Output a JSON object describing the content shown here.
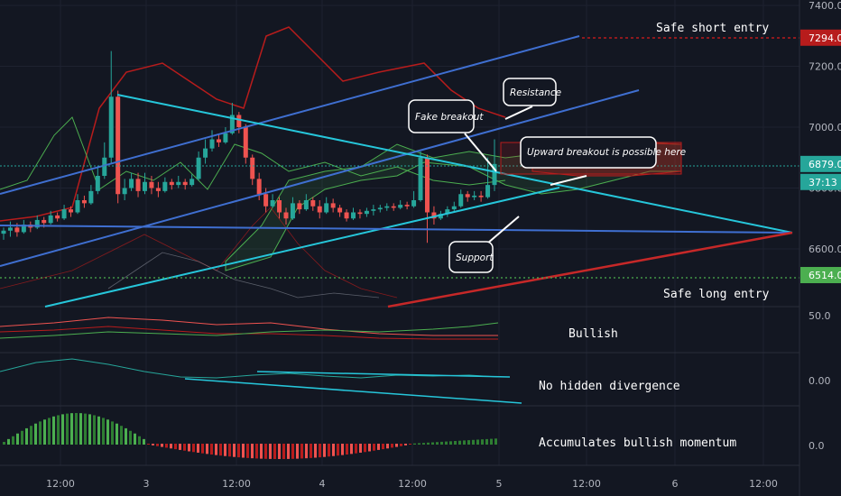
{
  "chart_data": {
    "type": "candlestick",
    "y_axis": {
      "ticks": [
        "7400.0",
        "7200.0",
        "7000.0",
        "6800.0",
        "6600.0"
      ],
      "range": [
        6470,
        7410
      ]
    },
    "x_axis": {
      "ticks": [
        "12:00",
        "3",
        "12:00",
        "4",
        "12:00",
        "5",
        "12:00",
        "6",
        "12:00"
      ]
    },
    "price_tags": [
      {
        "key": "short",
        "label": "7294.0",
        "value": 7294,
        "color": "#b71c1c"
      },
      {
        "key": "last",
        "label": "6879.0",
        "value": 6879,
        "color": "#26a69a"
      },
      {
        "key": "timer",
        "label": "37:13",
        "value": 6820,
        "color": "#26a69a"
      },
      {
        "key": "long",
        "label": "6514.0",
        "value": 6514,
        "color": "#4caf50"
      }
    ],
    "candles": [
      [
        6650,
        6660,
        6630,
        6670
      ],
      [
        6660,
        6670,
        6640,
        6690
      ],
      [
        6670,
        6655,
        6640,
        6685
      ],
      [
        6655,
        6680,
        6650,
        6695
      ],
      [
        6680,
        6670,
        6655,
        6690
      ],
      [
        6670,
        6695,
        6665,
        6710
      ],
      [
        6695,
        6685,
        6670,
        6705
      ],
      [
        6685,
        6710,
        6680,
        6725
      ],
      [
        6710,
        6700,
        6690,
        6720
      ],
      [
        6700,
        6730,
        6695,
        6745
      ],
      [
        6730,
        6720,
        6705,
        6740
      ],
      [
        6720,
        6760,
        6715,
        6780
      ],
      [
        6760,
        6750,
        6735,
        6775
      ],
      [
        6750,
        6790,
        6745,
        6810
      ],
      [
        6790,
        6840,
        6780,
        6870
      ],
      [
        6840,
        6900,
        6830,
        6950
      ],
      [
        6900,
        7100,
        6880,
        7250
      ],
      [
        7100,
        6780,
        6750,
        7120
      ],
      [
        6780,
        6800,
        6760,
        6830
      ],
      [
        6800,
        6830,
        6790,
        6850
      ],
      [
        6830,
        6790,
        6770,
        6850
      ],
      [
        6790,
        6820,
        6780,
        6850
      ],
      [
        6820,
        6800,
        6780,
        6840
      ],
      [
        6800,
        6790,
        6770,
        6820
      ],
      [
        6790,
        6820,
        6785,
        6835
      ],
      [
        6820,
        6810,
        6795,
        6830
      ],
      [
        6810,
        6820,
        6800,
        6840
      ],
      [
        6820,
        6810,
        6795,
        6830
      ],
      [
        6810,
        6830,
        6805,
        6845
      ],
      [
        6830,
        6900,
        6825,
        6920
      ],
      [
        6900,
        6930,
        6880,
        6960
      ],
      [
        6930,
        6960,
        6920,
        6990
      ],
      [
        6960,
        6950,
        6935,
        6975
      ],
      [
        6950,
        6980,
        6945,
        7000
      ],
      [
        6980,
        7040,
        6975,
        7080
      ],
      [
        7040,
        7000,
        6980,
        7050
      ],
      [
        7000,
        6900,
        6880,
        7010
      ],
      [
        6900,
        6830,
        6810,
        6910
      ],
      [
        6830,
        6780,
        6760,
        6850
      ],
      [
        6780,
        6740,
        6720,
        6800
      ],
      [
        6740,
        6760,
        6735,
        6780
      ],
      [
        6760,
        6720,
        6700,
        6770
      ],
      [
        6720,
        6700,
        6680,
        6735
      ],
      [
        6700,
        6750,
        6695,
        6770
      ],
      [
        6750,
        6730,
        6715,
        6760
      ],
      [
        6730,
        6760,
        6725,
        6780
      ],
      [
        6760,
        6740,
        6725,
        6770
      ],
      [
        6740,
        6720,
        6700,
        6760
      ],
      [
        6720,
        6750,
        6715,
        6770
      ],
      [
        6750,
        6735,
        6720,
        6765
      ],
      [
        6735,
        6720,
        6705,
        6745
      ],
      [
        6720,
        6700,
        6690,
        6730
      ],
      [
        6700,
        6720,
        6695,
        6735
      ],
      [
        6720,
        6715,
        6700,
        6730
      ],
      [
        6715,
        6725,
        6705,
        6735
      ],
      [
        6725,
        6730,
        6710,
        6745
      ],
      [
        6730,
        6735,
        6720,
        6745
      ],
      [
        6735,
        6740,
        6725,
        6750
      ],
      [
        6740,
        6735,
        6725,
        6750
      ],
      [
        6735,
        6745,
        6730,
        6760
      ],
      [
        6745,
        6740,
        6730,
        6755
      ],
      [
        6740,
        6760,
        6735,
        6790
      ],
      [
        6760,
        6900,
        6755,
        6920
      ],
      [
        6900,
        6720,
        6620,
        6910
      ],
      [
        6720,
        6700,
        6680,
        6740
      ],
      [
        6700,
        6715,
        6695,
        6725
      ],
      [
        6715,
        6730,
        6705,
        6740
      ],
      [
        6730,
        6740,
        6720,
        6755
      ],
      [
        6740,
        6780,
        6735,
        6795
      ],
      [
        6780,
        6770,
        6755,
        6790
      ],
      [
        6770,
        6775,
        6760,
        6790
      ],
      [
        6775,
        6770,
        6755,
        6790
      ],
      [
        6770,
        6810,
        6765,
        6900
      ],
      [
        6810,
        6879,
        6790,
        6960
      ]
    ],
    "annotations": [
      {
        "key": "safe_short",
        "text": "Safe short entry"
      },
      {
        "key": "safe_long",
        "text": "Safe long entry"
      },
      {
        "key": "bullish",
        "text": "Bullish"
      },
      {
        "key": "no_div",
        "text": "No hidden divergence"
      },
      {
        "key": "accum",
        "text": "Accumulates bullish momentum"
      }
    ],
    "callouts": [
      {
        "key": "resistance",
        "text": "Resistance"
      },
      {
        "key": "fake",
        "text": "Fake breakout"
      },
      {
        "key": "upward",
        "text": "Upward breakout is possible here"
      },
      {
        "key": "support",
        "text": "Support"
      }
    ],
    "indicator_ticks": [
      "50.0",
      "0.00",
      "0.0"
    ],
    "colors": {
      "background": "#131722",
      "up": "#26a69a",
      "down": "#ef5350",
      "trendline": "#26c6da",
      "channel": "#3f6fd1",
      "long_line": "#c62828",
      "kumo_red": "#b71c1c"
    }
  }
}
